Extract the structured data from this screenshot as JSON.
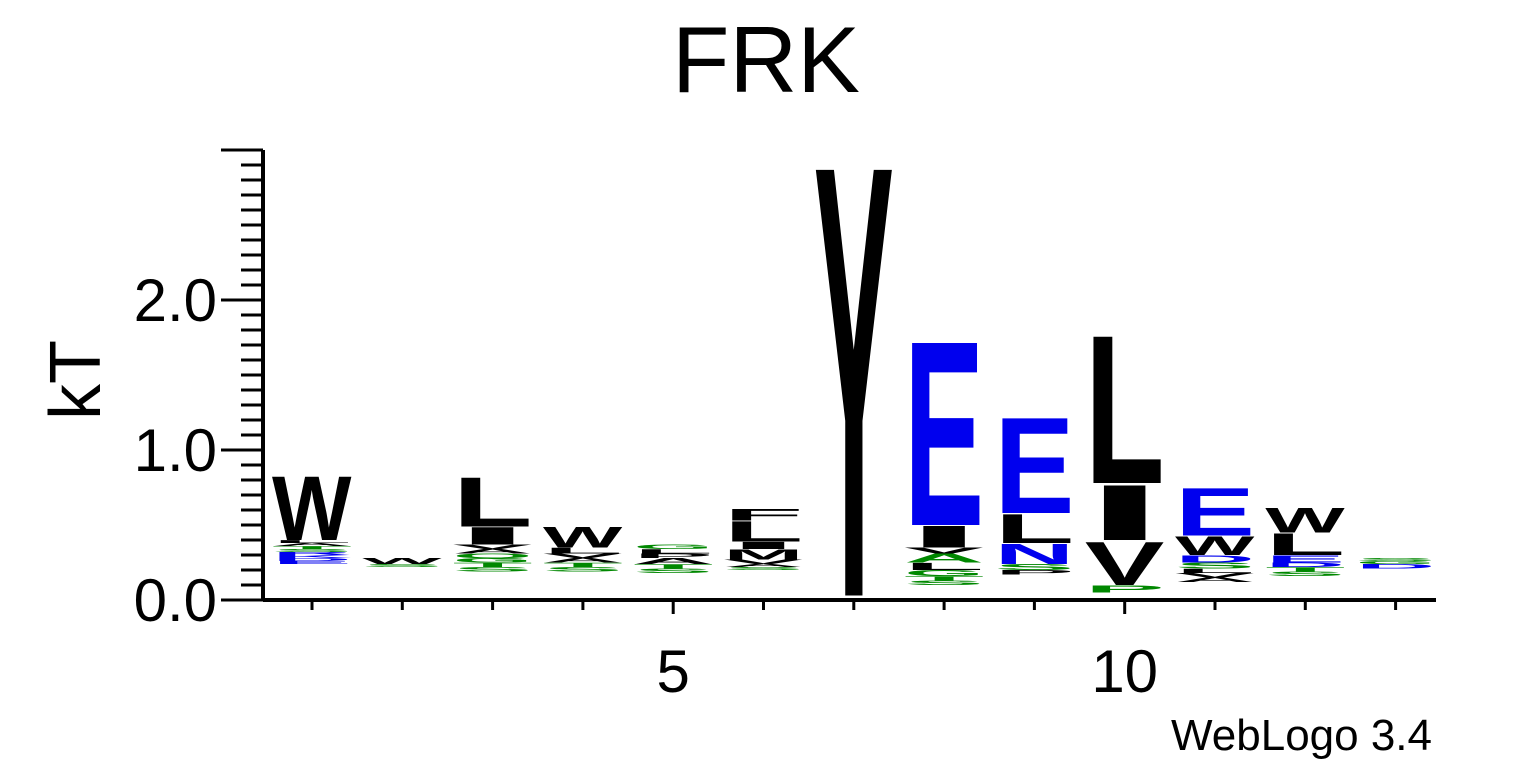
{
  "chart_data": {
    "type": "sequence-logo",
    "title": "FRK",
    "ylabel": "kT",
    "ylim": [
      0,
      3.0
    ],
    "y_ticks": [
      "0.0",
      "1.0",
      "2.0"
    ],
    "x_ticks": [
      "5",
      "10"
    ],
    "positions": [
      1,
      2,
      3,
      4,
      5,
      6,
      7,
      8,
      9,
      10,
      11,
      12,
      13
    ],
    "colors": {
      "black": "#000000",
      "blue": "#0000ee",
      "green": "#008800"
    },
    "columns": [
      {
        "position": 1,
        "floor": 0.24,
        "letters": [
          {
            "letter": "E",
            "color": "blue",
            "height": 0.02
          },
          {
            "letter": "D",
            "color": "blue",
            "height": 0.02
          },
          {
            "letter": "K",
            "color": "blue",
            "height": 0.02
          },
          {
            "letter": "R",
            "color": "blue",
            "height": 0.02
          },
          {
            "letter": "S",
            "color": "green",
            "height": 0.02
          },
          {
            "letter": "T",
            "color": "green",
            "height": 0.02
          },
          {
            "letter": "A",
            "color": "black",
            "height": 0.02
          },
          {
            "letter": "L",
            "color": "black",
            "height": 0.02
          },
          {
            "letter": "W",
            "color": "black",
            "height": 0.44
          }
        ]
      },
      {
        "position": 2,
        "floor": 0.22,
        "letters": [
          {
            "letter": "S",
            "color": "green",
            "height": 0.02
          },
          {
            "letter": "W",
            "color": "black",
            "height": 0.04
          }
        ]
      },
      {
        "position": 3,
        "floor": 0.19,
        "letters": [
          {
            "letter": "S",
            "color": "green",
            "height": 0.03
          },
          {
            "letter": "T",
            "color": "green",
            "height": 0.03
          },
          {
            "letter": "G",
            "color": "green",
            "height": 0.03
          },
          {
            "letter": "Q",
            "color": "green",
            "height": 0.03
          },
          {
            "letter": "A",
            "color": "black",
            "height": 0.03
          },
          {
            "letter": "V",
            "color": "black",
            "height": 0.03
          },
          {
            "letter": "I",
            "color": "black",
            "height": 0.12
          },
          {
            "letter": "L",
            "color": "black",
            "height": 0.34
          }
        ]
      },
      {
        "position": 4,
        "floor": 0.19,
        "letters": [
          {
            "letter": "S",
            "color": "green",
            "height": 0.03
          },
          {
            "letter": "T",
            "color": "green",
            "height": 0.03
          },
          {
            "letter": "A",
            "color": "black",
            "height": 0.03
          },
          {
            "letter": "V",
            "color": "black",
            "height": 0.03
          },
          {
            "letter": "L",
            "color": "black",
            "height": 0.04
          },
          {
            "letter": "W",
            "color": "black",
            "height": 0.14
          }
        ]
      },
      {
        "position": 5,
        "floor": 0.18,
        "letters": [
          {
            "letter": "S",
            "color": "green",
            "height": 0.03
          },
          {
            "letter": "T",
            "color": "green",
            "height": 0.03
          },
          {
            "letter": "A",
            "color": "black",
            "height": 0.04
          },
          {
            "letter": "P",
            "color": "black",
            "height": 0.03
          },
          {
            "letter": "L",
            "color": "black",
            "height": 0.03
          },
          {
            "letter": "G",
            "color": "green",
            "height": 0.03
          }
        ]
      },
      {
        "position": 6,
        "floor": 0.2,
        "letters": [
          {
            "letter": "S",
            "color": "green",
            "height": 0.02
          },
          {
            "letter": "A",
            "color": "black",
            "height": 0.02
          },
          {
            "letter": "V",
            "color": "black",
            "height": 0.03
          },
          {
            "letter": "M",
            "color": "black",
            "height": 0.07
          },
          {
            "letter": "I",
            "color": "black",
            "height": 0.05
          },
          {
            "letter": "L",
            "color": "black",
            "height": 0.14
          },
          {
            "letter": "F",
            "color": "black",
            "height": 0.08
          }
        ]
      },
      {
        "position": 7,
        "floor": 0.03,
        "letters": [
          {
            "letter": "Y",
            "color": "black",
            "height": 2.97
          }
        ]
      },
      {
        "position": 8,
        "floor": 0.1,
        "letters": [
          {
            "letter": "S",
            "color": "green",
            "height": 0.03
          },
          {
            "letter": "T",
            "color": "green",
            "height": 0.03
          },
          {
            "letter": "G",
            "color": "green",
            "height": 0.04
          },
          {
            "letter": "L",
            "color": "black",
            "height": 0.05
          },
          {
            "letter": "A",
            "color": "green",
            "height": 0.06
          },
          {
            "letter": "V",
            "color": "black",
            "height": 0.04
          },
          {
            "letter": "I",
            "color": "black",
            "height": 0.15
          },
          {
            "letter": "E",
            "color": "blue",
            "height": 1.27
          }
        ]
      },
      {
        "position": 9,
        "floor": 0.17,
        "letters": [
          {
            "letter": "P",
            "color": "black",
            "height": 0.03
          },
          {
            "letter": "S",
            "color": "green",
            "height": 0.04
          },
          {
            "letter": "N",
            "color": "blue",
            "height": 0.14
          },
          {
            "letter": "L",
            "color": "black",
            "height": 0.2
          },
          {
            "letter": "E",
            "color": "blue",
            "height": 0.66
          }
        ]
      },
      {
        "position": 10,
        "floor": 0.05,
        "letters": [
          {
            "letter": "P",
            "color": "green",
            "height": 0.05
          },
          {
            "letter": "V",
            "color": "black",
            "height": 0.3
          },
          {
            "letter": "I",
            "color": "black",
            "height": 0.38
          },
          {
            "letter": "L",
            "color": "black",
            "height": 1.02
          }
        ]
      },
      {
        "position": 11,
        "floor": 0.12,
        "letters": [
          {
            "letter": "A",
            "color": "black",
            "height": 0.03
          },
          {
            "letter": "V",
            "color": "black",
            "height": 0.03
          },
          {
            "letter": "L",
            "color": "black",
            "height": 0.03
          },
          {
            "letter": "S",
            "color": "green",
            "height": 0.04
          },
          {
            "letter": "D",
            "color": "blue",
            "height": 0.05
          },
          {
            "letter": "W",
            "color": "black",
            "height": 0.13
          },
          {
            "letter": "E",
            "color": "blue",
            "height": 0.33
          }
        ]
      },
      {
        "position": 12,
        "floor": 0.16,
        "letters": [
          {
            "letter": "S",
            "color": "green",
            "height": 0.03
          },
          {
            "letter": "T",
            "color": "green",
            "height": 0.03
          },
          {
            "letter": "D",
            "color": "blue",
            "height": 0.03
          },
          {
            "letter": "E",
            "color": "blue",
            "height": 0.05
          },
          {
            "letter": "L",
            "color": "black",
            "height": 0.15
          },
          {
            "letter": "W",
            "color": "black",
            "height": 0.17
          }
        ]
      },
      {
        "position": 13,
        "floor": 0.21,
        "letters": [
          {
            "letter": "D",
            "color": "blue",
            "height": 0.03
          },
          {
            "letter": "G",
            "color": "green",
            "height": 0.02
          },
          {
            "letter": "S",
            "color": "green",
            "height": 0.02
          }
        ]
      }
    ]
  },
  "footer": {
    "credit": "WebLogo 3.4"
  }
}
